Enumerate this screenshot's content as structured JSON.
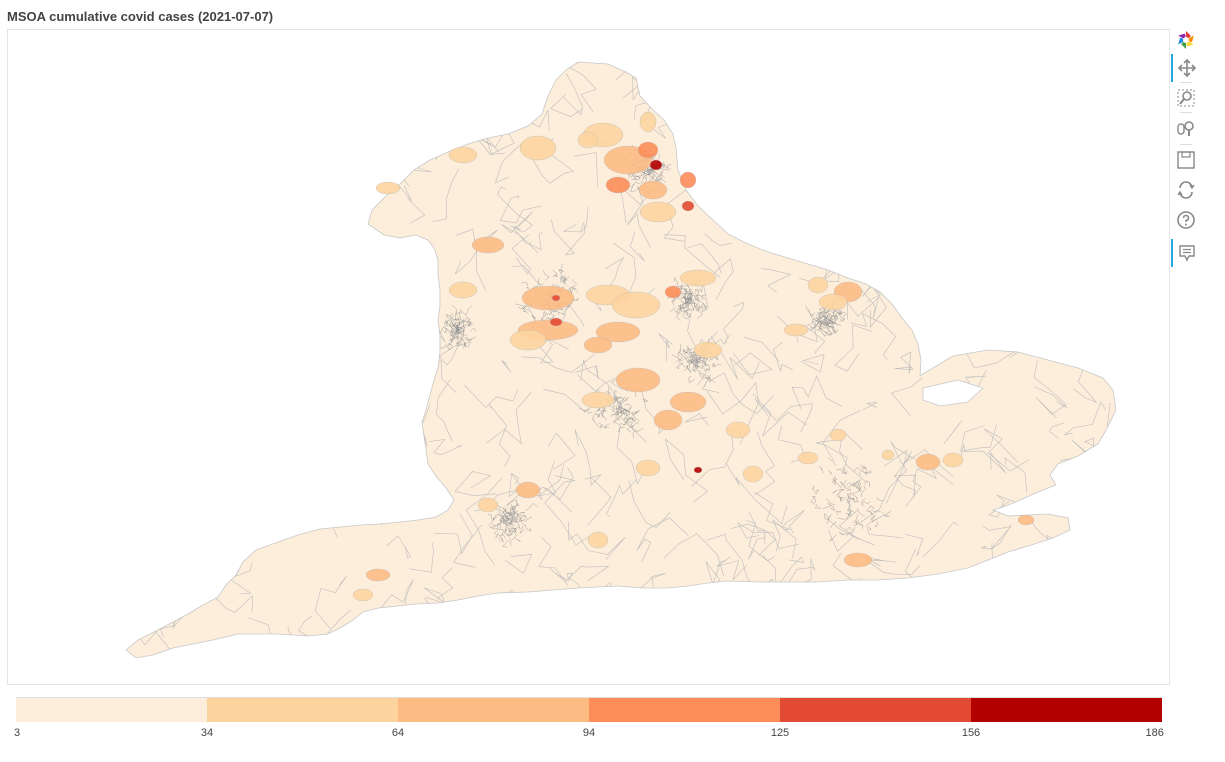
{
  "title": "MSOA cumulative covid cases (2021-07-07)",
  "map": {
    "land_color": "#fdeedb",
    "boundary_color": "#bdbdbd",
    "hotspot_levels": [
      1,
      2,
      3,
      4,
      5
    ]
  },
  "toolbar": {
    "tools": [
      {
        "name": "bokeh-logo",
        "icon": "bokeh-logo-icon",
        "active": false,
        "interactable": false
      },
      {
        "name": "pan-tool",
        "icon": "pan-icon",
        "active": true,
        "interactable": true
      },
      {
        "name": "box-zoom-tool",
        "icon": "box-zoom-icon",
        "active": false,
        "interactable": true
      },
      {
        "name": "wheel-zoom-tool",
        "icon": "wheel-zoom-icon",
        "active": false,
        "interactable": true
      },
      {
        "name": "save-tool",
        "icon": "save-icon",
        "active": false,
        "interactable": true
      },
      {
        "name": "reset-tool",
        "icon": "reset-icon",
        "active": false,
        "interactable": true
      },
      {
        "name": "help-tool",
        "icon": "help-icon",
        "active": false,
        "interactable": true
      },
      {
        "name": "hover-tool",
        "icon": "hover-icon",
        "active": true,
        "interactable": true
      }
    ]
  },
  "colorbar": {
    "colors": [
      "#fdeedb",
      "#fdd49e",
      "#fdbb84",
      "#fc8d59",
      "#e34a33",
      "#b30000"
    ],
    "ticks": [
      "3",
      "34",
      "64",
      "94",
      "125",
      "156",
      "186"
    ],
    "min": 3,
    "max": 186
  }
}
